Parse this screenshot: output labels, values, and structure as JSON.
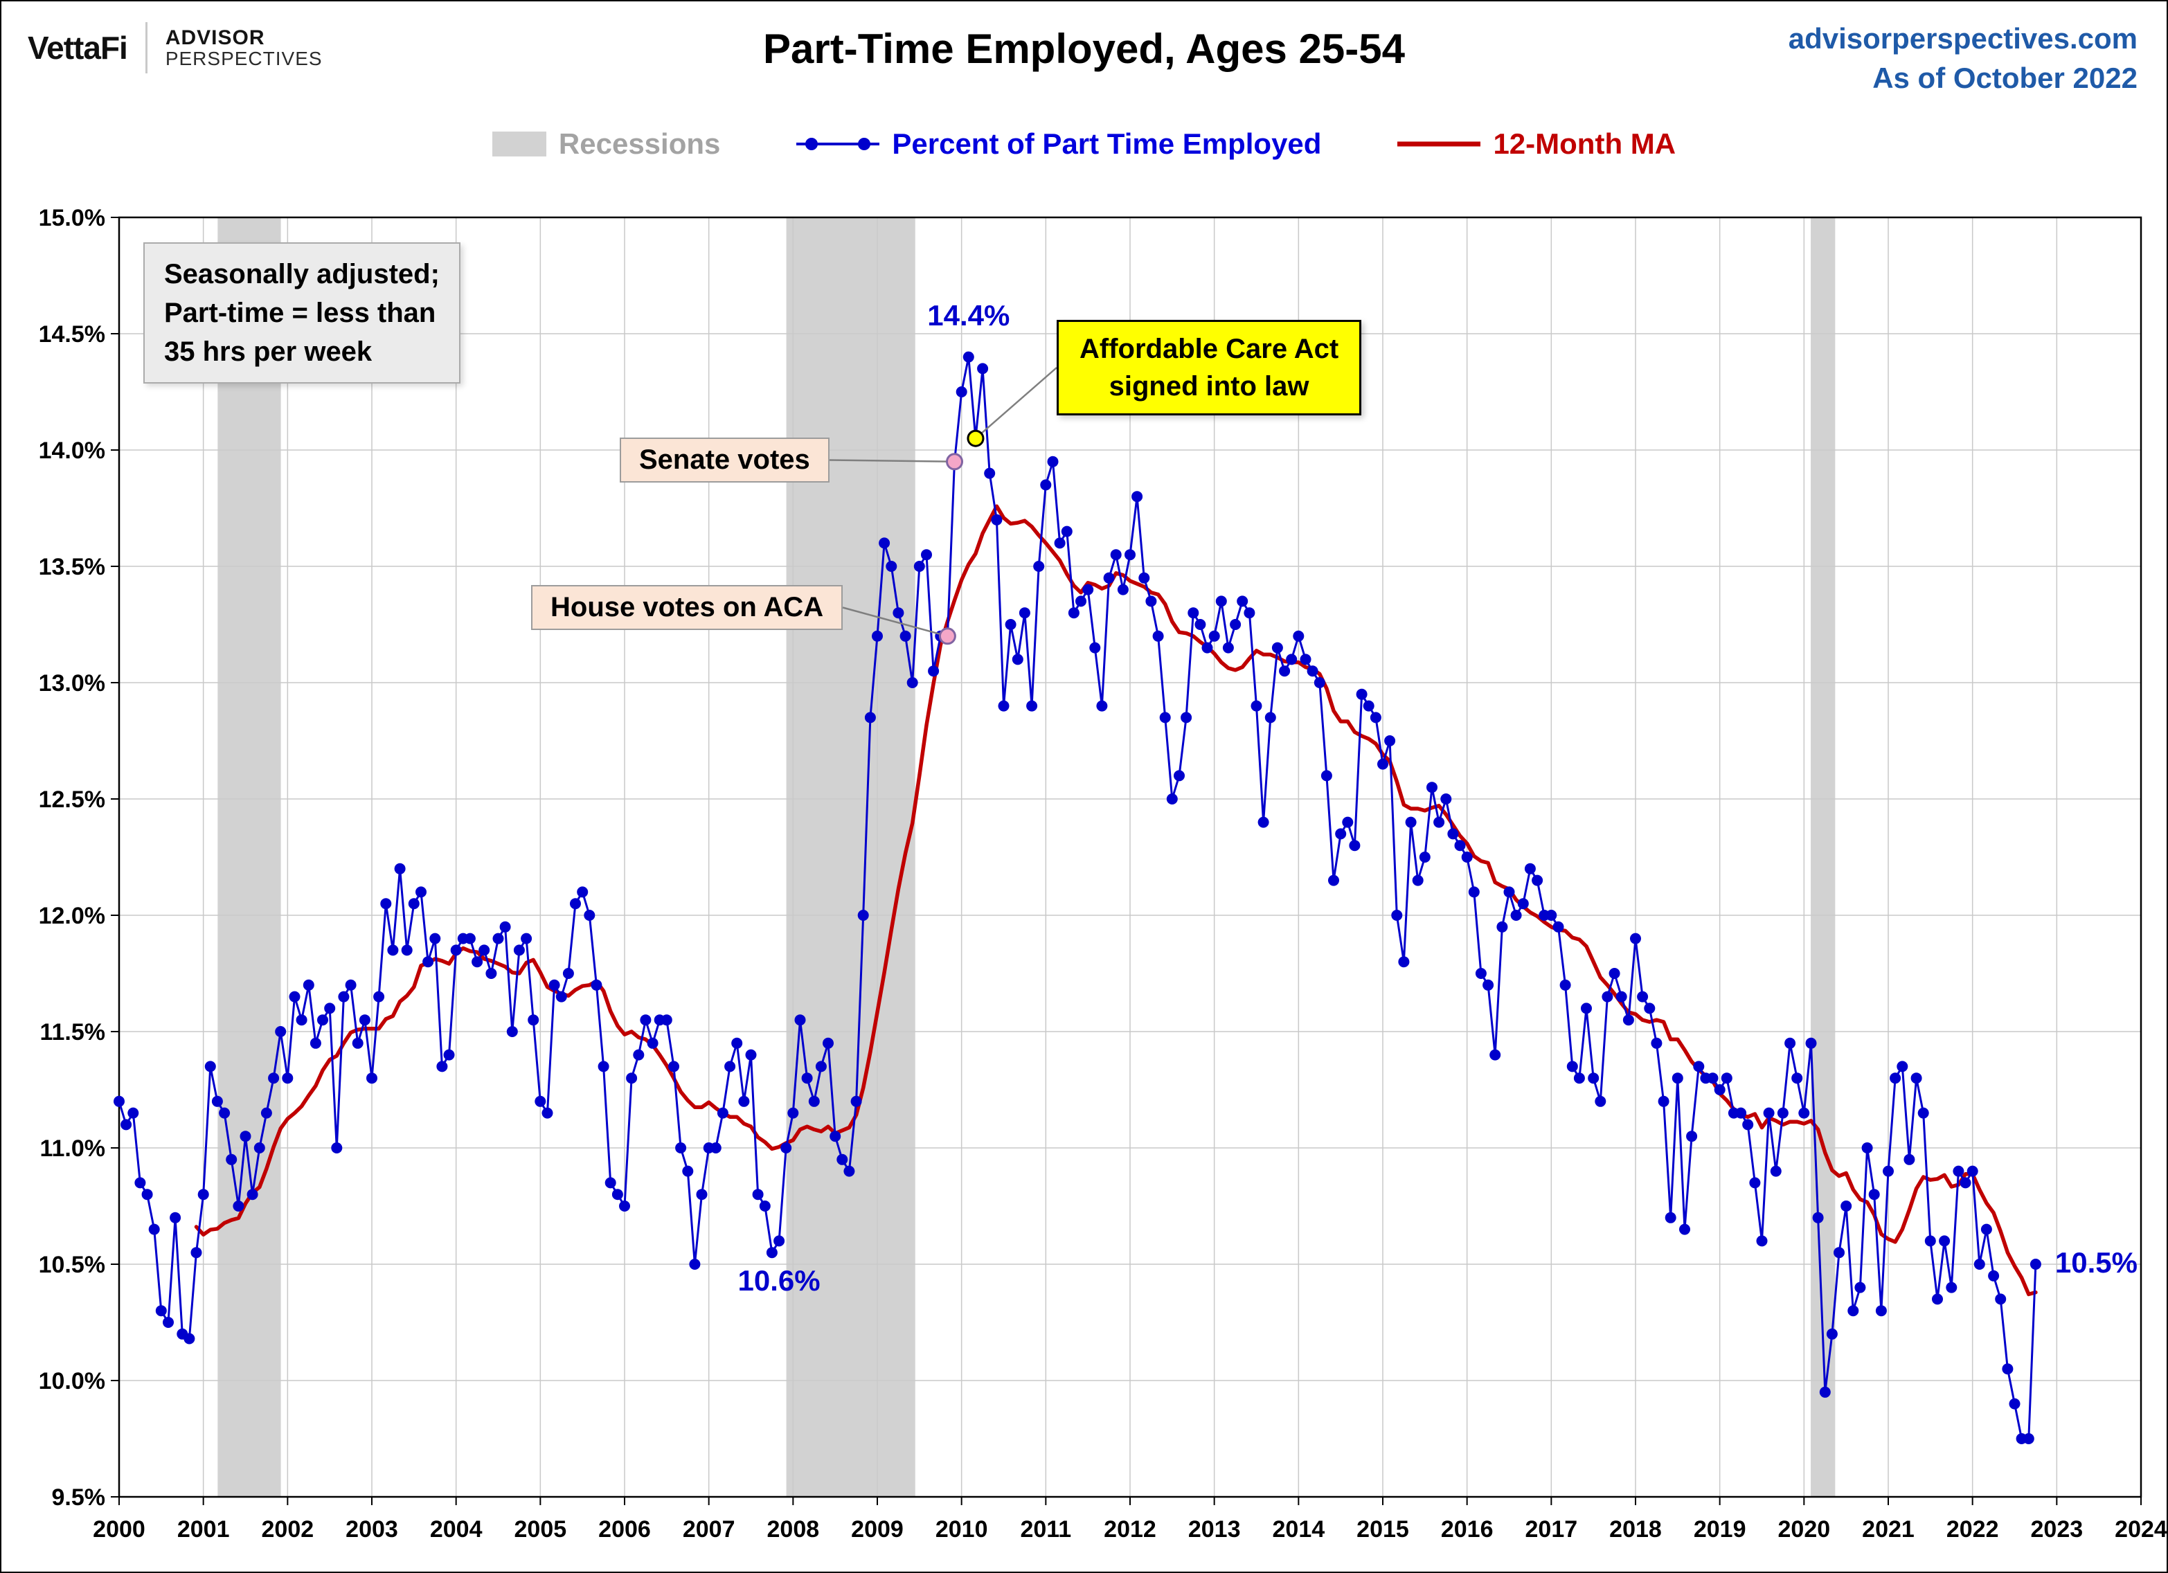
{
  "header": {
    "logo": {
      "brand": "VettaFi",
      "advisor": "ADVISOR",
      "perspectives": "PERSPECTIVES"
    },
    "title": "Part-Time Employed, Ages 25-54",
    "site": "advisorperspectives.com",
    "as_of": "As of October 2022"
  },
  "legend": {
    "recessions": {
      "label": "Recessions",
      "color": "#d2d2d2"
    },
    "series_pct": {
      "label": "Percent of Part Time Employed",
      "color": "#0000cc"
    },
    "series_ma": {
      "label": "12-Month MA",
      "color": "#c00000"
    }
  },
  "annotations": {
    "seasonal_note": "Seasonally adjusted;\nPart-time = less than\n35 hrs per week"
  },
  "chart_data": {
    "type": "line",
    "title": "Part-Time Employed, Ages 25-54",
    "frequency": "monthly",
    "start_year": 2000,
    "start_month": 1,
    "end_label": "October 2022",
    "x_axis": {
      "min": 2000,
      "max": 2024,
      "tick_step": 1
    },
    "y_axis": {
      "min": 9.5,
      "max": 15.0,
      "tick_step": 0.5,
      "format": "percent"
    },
    "grid": true,
    "recessions": [
      [
        2001.17,
        2001.92
      ],
      [
        2007.92,
        2009.45
      ],
      [
        2020.08,
        2020.37
      ]
    ],
    "series": [
      {
        "name": "Percent of Part Time Employed",
        "color": "#0000cc",
        "marker": "circle",
        "monthly_values": [
          11.2,
          11.1,
          11.15,
          10.85,
          10.8,
          10.65,
          10.3,
          10.25,
          10.7,
          10.2,
          10.18,
          10.55,
          10.8,
          11.35,
          11.2,
          11.15,
          10.95,
          10.75,
          11.05,
          10.8,
          11.0,
          11.15,
          11.3,
          11.5,
          11.3,
          11.65,
          11.55,
          11.7,
          11.45,
          11.55,
          11.6,
          11.0,
          11.65,
          11.7,
          11.45,
          11.55,
          11.3,
          11.65,
          12.05,
          11.85,
          12.2,
          11.85,
          12.05,
          12.1,
          11.8,
          11.9,
          11.35,
          11.4,
          11.85,
          11.9,
          11.9,
          11.8,
          11.85,
          11.75,
          11.9,
          11.95,
          11.5,
          11.85,
          11.9,
          11.55,
          11.2,
          11.15,
          11.7,
          11.65,
          11.75,
          12.05,
          12.1,
          12.0,
          11.7,
          11.35,
          10.85,
          10.8,
          10.75,
          11.3,
          11.4,
          11.55,
          11.45,
          11.55,
          11.55,
          11.35,
          11.0,
          10.9,
          10.5,
          10.8,
          11.0,
          11.0,
          11.15,
          11.35,
          11.45,
          11.2,
          11.4,
          10.8,
          10.75,
          10.55,
          10.6,
          11.0,
          11.15,
          11.55,
          11.3,
          11.2,
          11.35,
          11.45,
          11.05,
          10.95,
          10.9,
          11.2,
          12.0,
          12.85,
          13.2,
          13.6,
          13.5,
          13.3,
          13.2,
          13.0,
          13.5,
          13.55,
          13.05,
          13.2,
          13.2,
          13.95,
          14.25,
          14.4,
          14.05,
          14.35,
          13.9,
          13.7,
          12.9,
          13.25,
          13.1,
          13.3,
          12.9,
          13.5,
          13.85,
          13.95,
          13.6,
          13.65,
          13.3,
          13.35,
          13.4,
          13.15,
          12.9,
          13.45,
          13.55,
          13.4,
          13.55,
          13.8,
          13.45,
          13.35,
          13.2,
          12.85,
          12.5,
          12.6,
          12.85,
          13.3,
          13.25,
          13.15,
          13.2,
          13.35,
          13.15,
          13.25,
          13.35,
          13.3,
          12.9,
          12.4,
          12.85,
          13.15,
          13.05,
          13.1,
          13.2,
          13.1,
          13.05,
          13.0,
          12.6,
          12.15,
          12.35,
          12.4,
          12.3,
          12.95,
          12.9,
          12.85,
          12.65,
          12.75,
          12.0,
          11.8,
          12.4,
          12.15,
          12.25,
          12.55,
          12.4,
          12.5,
          12.35,
          12.3,
          12.25,
          12.1,
          11.75,
          11.7,
          11.4,
          11.95,
          12.1,
          12.0,
          12.05,
          12.2,
          12.15,
          12.0,
          12.0,
          11.95,
          11.7,
          11.35,
          11.3,
          11.6,
          11.3,
          11.2,
          11.65,
          11.75,
          11.65,
          11.55,
          11.9,
          11.65,
          11.6,
          11.45,
          11.2,
          10.7,
          11.3,
          10.65,
          11.05,
          11.35,
          11.3,
          11.3,
          11.25,
          11.3,
          11.15,
          11.15,
          11.1,
          10.85,
          10.6,
          11.15,
          10.9,
          11.15,
          11.45,
          11.3,
          11.15,
          11.45,
          10.7,
          9.95,
          10.2,
          10.55,
          10.75,
          10.3,
          10.4,
          11.0,
          10.8,
          10.3,
          10.9,
          11.3,
          11.35,
          10.95,
          11.3,
          11.15,
          10.6,
          10.35,
          10.6,
          10.4,
          10.9,
          10.85,
          10.9,
          10.5,
          10.65,
          10.45,
          10.35,
          10.05,
          9.9,
          9.75,
          9.75,
          10.5
        ]
      },
      {
        "name": "12-Month MA",
        "color": "#c00000",
        "type": "derived",
        "derivation": "trailing 12-month average of Percent of Part Time Employed",
        "window": 12
      }
    ],
    "callouts": {
      "peak": {
        "label": "14.4%",
        "month_index": 121,
        "value": 14.4,
        "placement": "above"
      },
      "low_2007": {
        "label": "10.6%",
        "month_index": 94,
        "value": 10.6,
        "placement": "below"
      },
      "latest": {
        "label": "10.5%",
        "month_index": 273,
        "value": 10.5,
        "placement": "right"
      },
      "house_votes": {
        "label": "House votes on ACA",
        "month_index": 118,
        "value": 13.2,
        "marker": "pink"
      },
      "senate_votes": {
        "label": "Senate votes",
        "month_index": 119,
        "value": 13.95,
        "marker": "pink"
      },
      "aca_signed": {
        "label": "Affordable Care Act\nsigned into law",
        "month_index": 122,
        "value": 14.05,
        "marker": "yellow"
      }
    }
  }
}
